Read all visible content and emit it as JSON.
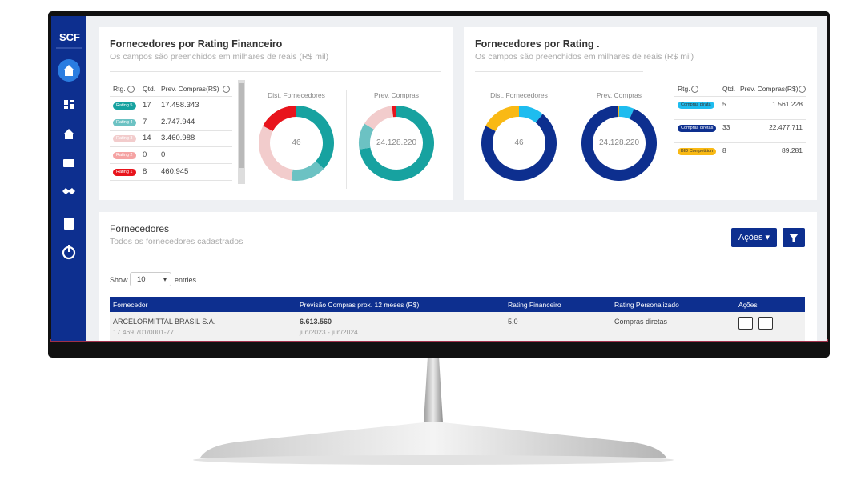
{
  "sidebar": {
    "brand": "SCF"
  },
  "panel_rating_financeiro": {
    "title": "Fornecedores por Rating Financeiro",
    "subtitle": "Os campos são preenchidos em milhares de reais (R$ mil)",
    "columns": [
      "Rtg.",
      "Qtd.",
      "Prev. Compras(R$)"
    ],
    "rows": [
      {
        "badge": "Rating 5",
        "color": "#17a2a0",
        "qtd": 17,
        "prev": {
          "value": 17458343,
          "label": "17.458.343"
        }
      },
      {
        "badge": "Rating 4",
        "color": "#6cc2c3",
        "qtd": 7,
        "prev": {
          "value": 2747944,
          "label": "2.747.944"
        }
      },
      {
        "badge": "Rating 3",
        "color": "#f2cccc",
        "qtd": 14,
        "prev": {
          "value": 3460988,
          "label": "3.460.988"
        }
      },
      {
        "badge": "Rating 2",
        "color": "#f5a3a3",
        "qtd": 0,
        "prev": {
          "value": 0,
          "label": "0"
        }
      },
      {
        "badge": "Rating 1",
        "color": "#e8141c",
        "qtd": 8,
        "prev": {
          "value": 460945,
          "label": "460.945"
        }
      }
    ],
    "donuts": [
      {
        "title": "Dist. Fornecedores",
        "center": "46"
      },
      {
        "title": "Prev. Compras",
        "center": "24.128.220"
      }
    ]
  },
  "panel_rating": {
    "title": "Fornecedores por Rating .",
    "subtitle": "Os campos são preenchidos em milhares de reais (R$ mil)",
    "columns": [
      "Rtg.",
      "Qtd.",
      "Prev. Compras(R$)"
    ],
    "rows": [
      {
        "badge": "Compras pirata",
        "color": "#1ebcef",
        "qtd": 5,
        "prev": {
          "value": 1561228,
          "label": "1.561.228"
        }
      },
      {
        "badge": "Compras diretas",
        "color": "#0d2f8f",
        "qtd": 33,
        "prev": {
          "value": 22477711,
          "label": "22.477.711"
        }
      },
      {
        "badge": "BID Competition",
        "color": "#f9b914",
        "qtd": 8,
        "prev": {
          "value": 89281,
          "label": "89.281"
        }
      }
    ],
    "donuts": [
      {
        "title": "Dist. Fornecedores",
        "center": "46"
      },
      {
        "title": "Prev. Compras",
        "center": "24.128.220"
      }
    ]
  },
  "fornecedores": {
    "title": "Fornecedores",
    "subtitle": "Todos os fornecedores cadastrados",
    "actions_button": "Ações",
    "show": "Show",
    "entries_value": "10",
    "entries": "entries",
    "columns": [
      "Fornecedor",
      "Previsão Compras prox. 12 meses (R$)",
      "Rating Financeiro",
      "Rating Personalizado",
      "Ações"
    ],
    "rows": [
      {
        "name": "ARCELORMITTAL BRASIL S.A.",
        "cnpj": "17.469.701/0001-77",
        "previsao": "6.613.560",
        "periodo": "jun/2023 - jun/2024",
        "rating": "5,0",
        "personalizado": "Compras diretas"
      }
    ]
  }
}
